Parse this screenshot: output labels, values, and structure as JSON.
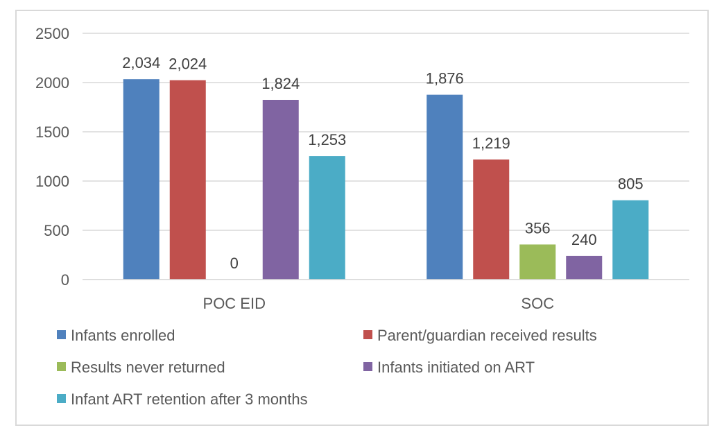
{
  "chart_data": {
    "type": "bar",
    "categories": [
      "POC EID",
      "SOC"
    ],
    "ylim": [
      0,
      2500
    ],
    "yticks": [
      "0",
      "500",
      "1000",
      "1500",
      "2000",
      "2500"
    ],
    "grid": true,
    "legend_position": "bottom",
    "series": [
      {
        "name": "Infants enrolled",
        "color": "#4f81bd",
        "values": [
          2034,
          1876
        ],
        "labels": [
          "2,034",
          "1,876"
        ]
      },
      {
        "name": "Parent/guardian received results",
        "color": "#c0504d",
        "values": [
          2024,
          1219
        ],
        "labels": [
          "2,024",
          "1,219"
        ]
      },
      {
        "name": "Results never returned",
        "color": "#9bbb59",
        "values": [
          0,
          356
        ],
        "labels": [
          "0",
          "356"
        ]
      },
      {
        "name": "Infants initiated on ART",
        "color": "#8064a2",
        "values": [
          1824,
          240
        ],
        "labels": [
          "1,824",
          "240"
        ]
      },
      {
        "name": "Infant ART retention after 3 months",
        "color": "#4bacc6",
        "values": [
          1253,
          805
        ],
        "labels": [
          "1,253",
          "805"
        ]
      }
    ]
  }
}
